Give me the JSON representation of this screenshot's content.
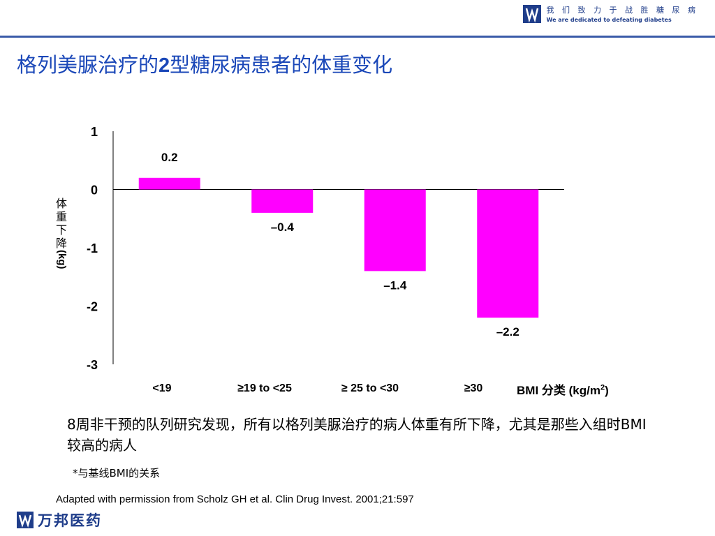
{
  "header": {
    "slogan_cn": "我 们 致 力 于 战 胜 糖 尿 病",
    "slogan_en": "We are dedicated to defeating diabetes"
  },
  "title_pre": "格列美脲治疗的",
  "title_num": "2",
  "title_post": "型糖尿病患者的体重变化",
  "chart_data": {
    "type": "bar",
    "categories": [
      "<19",
      "≥19 to <25",
      "≥ 25 to <30",
      "≥30"
    ],
    "values": [
      0.2,
      -0.4,
      -1.4,
      -2.2
    ],
    "value_labels": [
      "0.2",
      "–0.4",
      "–1.4",
      "–2.2"
    ],
    "ylabel_cn": "体重下降",
    "ylabel_unit": "(kg)",
    "xlabel_main": "BMI 分类 (kg/m",
    "xlabel_sup": "2",
    "xlabel_end": ")",
    "ylim": [
      -3,
      1
    ],
    "yticks": [
      "1",
      "0",
      "-1",
      "-2",
      "-3"
    ],
    "bar_color": "#ff00ff",
    "grid": false
  },
  "body_text": "8周非干预的队列研究发现，所有以格列美脲治疗的病人体重有所下降，尤其是那些入组时BMI较高的病人",
  "note": "*与基线BMI的关系",
  "source": "Adapted with permission from Scholz GH et al. Clin Drug Invest. 2001;21:597",
  "footer": {
    "brand": "万邦医药"
  },
  "colors": {
    "title": "#1a47b8",
    "brand": "#1f3d8a",
    "rule": "#3a5ba8"
  }
}
